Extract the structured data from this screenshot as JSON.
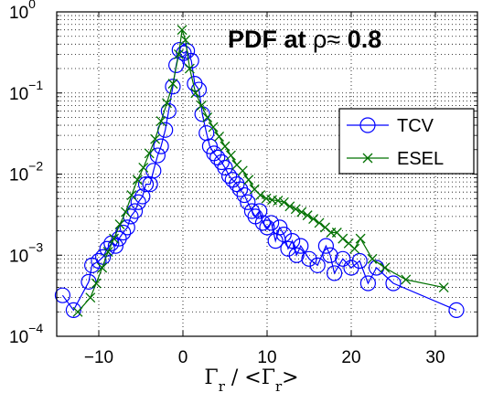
{
  "chart_data": {
    "type": "scatter",
    "title_prefix": "PDF at ",
    "title_symbol": "ρ≈ ",
    "title_value": "0.8",
    "xlabel": {
      "main1": "Γ",
      "sub1": "r",
      "mid": " / <Γ",
      "sub2": "r",
      "end": ">"
    },
    "ylabel": "",
    "xlim": [
      -15,
      35
    ],
    "ylim": [
      0.0001,
      1
    ],
    "yscale": "log",
    "grid": true,
    "legend_position": "top-right",
    "x_ticks": [
      -10,
      0,
      10,
      20,
      30
    ],
    "x_tick_labels": [
      "−10",
      "0",
      "10",
      "20",
      "30"
    ],
    "y_ticks": [
      0.0001,
      0.001,
      0.01,
      0.1,
      1
    ],
    "y_tick_labels": [
      {
        "base": "10",
        "exp": "−4"
      },
      {
        "base": "10",
        "exp": "−3"
      },
      {
        "base": "10",
        "exp": "−2"
      },
      {
        "base": "10",
        "exp": "−1"
      },
      {
        "base": "10",
        "exp": "0"
      }
    ],
    "series": [
      {
        "name": "TCV",
        "marker": "circle",
        "color": "#0000ff",
        "x": [
          -14.3,
          -13.0,
          -11.2,
          -10.8,
          -10.0,
          -9.5,
          -9.0,
          -8.5,
          -8.0,
          -7.6,
          -7.1,
          -6.6,
          -6.2,
          -5.7,
          -5.3,
          -4.8,
          -4.4,
          -3.9,
          -3.5,
          -3.0,
          -2.6,
          -2.1,
          -1.7,
          -1.2,
          -0.8,
          -0.4,
          0.1,
          0.5,
          1.0,
          1.4,
          1.9,
          2.3,
          2.8,
          3.2,
          3.7,
          4.1,
          4.6,
          5.0,
          5.5,
          5.9,
          6.4,
          6.8,
          7.3,
          7.7,
          8.2,
          8.6,
          9.1,
          9.5,
          10.0,
          10.5,
          11.0,
          11.5,
          12.0,
          12.5,
          13.0,
          13.5,
          14.0,
          15.0,
          16.0,
          17.0,
          17.5,
          18.0,
          19.0,
          20.0,
          21.0,
          22.0,
          23.0,
          25.0,
          32.5
        ],
        "y": [
          0.00032,
          0.00021,
          0.00047,
          0.00075,
          0.00085,
          0.00095,
          0.0012,
          0.0014,
          0.0013,
          0.0016,
          0.0019,
          0.0022,
          0.003,
          0.0035,
          0.0045,
          0.0053,
          0.0075,
          0.0075,
          0.011,
          0.017,
          0.022,
          0.035,
          0.06,
          0.12,
          0.22,
          0.34,
          0.31,
          0.33,
          0.25,
          0.13,
          0.11,
          0.055,
          0.032,
          0.022,
          0.018,
          0.016,
          0.014,
          0.012,
          0.0095,
          0.0085,
          0.0075,
          0.0065,
          0.0055,
          0.0045,
          0.0035,
          0.003,
          0.0035,
          0.0025,
          0.0022,
          0.0025,
          0.0015,
          0.0022,
          0.0018,
          0.0012,
          0.0015,
          0.001,
          0.0013,
          0.0009,
          0.00075,
          0.0013,
          0.001,
          0.0006,
          0.0009,
          0.0007,
          0.00085,
          0.00045,
          0.0007,
          0.00045,
          0.00021
        ]
      },
      {
        "name": "ESEL",
        "marker": "x",
        "color": "#007000",
        "x": [
          -12.5,
          -11.0,
          -10.3,
          -9.6,
          -8.9,
          -8.2,
          -7.5,
          -6.8,
          -6.1,
          -5.4,
          -4.7,
          -4.0,
          -3.3,
          -2.6,
          -1.9,
          -1.2,
          -0.5,
          -0.1,
          0.3,
          0.8,
          1.5,
          2.2,
          2.9,
          3.6,
          4.3,
          5.0,
          5.7,
          6.4,
          7.1,
          7.8,
          8.5,
          9.2,
          9.9,
          10.6,
          11.3,
          12.0,
          12.7,
          13.4,
          14.1,
          14.8,
          15.5,
          16.2,
          16.9,
          17.6,
          18.3,
          19.0,
          19.7,
          20.4,
          21.1,
          22.5,
          24.0,
          26.5,
          31.0
        ],
        "y": [
          0.0002,
          0.0003,
          0.00045,
          0.0007,
          0.0011,
          0.0016,
          0.0024,
          0.0034,
          0.0055,
          0.0085,
          0.012,
          0.018,
          0.027,
          0.045,
          0.075,
          0.13,
          0.3,
          0.6,
          0.45,
          0.2,
          0.1,
          0.07,
          0.05,
          0.038,
          0.029,
          0.022,
          0.017,
          0.013,
          0.011,
          0.0085,
          0.0065,
          0.0055,
          0.005,
          0.0048,
          0.0047,
          0.0045,
          0.004,
          0.0037,
          0.0034,
          0.0031,
          0.0028,
          0.0025,
          0.0022,
          0.0019,
          0.0019,
          0.0016,
          0.0014,
          0.0012,
          0.0016,
          0.0009,
          0.0007,
          0.0005,
          0.0004
        ]
      }
    ]
  }
}
